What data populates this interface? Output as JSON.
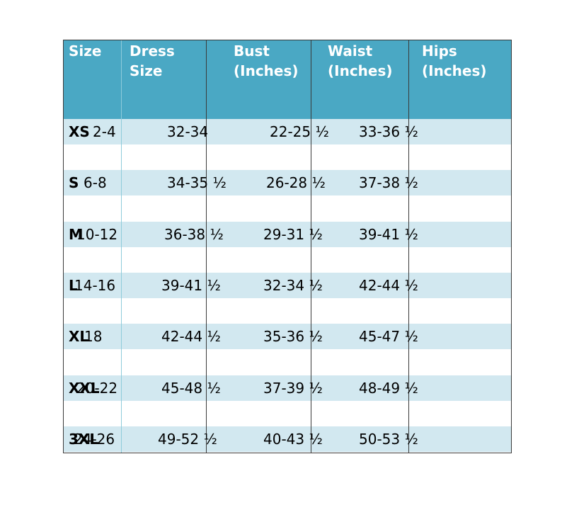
{
  "headers": [
    {
      "id": "size",
      "text": "Size"
    },
    {
      "id": "dress",
      "text": "Dress\nSize"
    },
    {
      "id": "bust",
      "text": "Bust\n(Inches)"
    },
    {
      "id": "waist",
      "text": "Waist\n(Inches)"
    },
    {
      "id": "hips",
      "text": "Hips\n(Inches)"
    }
  ],
  "rows": [
    {
      "size": "XS",
      "dress": "2-4",
      "bust": "32-34",
      "waist": "22-25 ½",
      "hips": "33-36 ½"
    },
    {
      "size": "S",
      "dress": "6-8",
      "bust": "34-35 ½",
      "waist": "26-28 ½",
      "hips": "37-38 ½"
    },
    {
      "size": "M",
      "dress": "10-12",
      "bust": "36-38 ½",
      "waist": "29-31 ½",
      "hips": "39-41 ½"
    },
    {
      "size": "L",
      "dress": "14-16",
      "bust": "39-41 ½",
      "waist": "32-34 ½",
      "hips": "42-44 ½"
    },
    {
      "size": "XL",
      "dress": "18",
      "bust": "42-44 ½",
      "waist": "35-36 ½",
      "hips": "45-47 ½"
    },
    {
      "size": "XXL",
      "dress": "20-22",
      "bust": "45-48 ½",
      "waist": "37-39 ½",
      "hips": "48-49 ½"
    },
    {
      "size": "3XL",
      "dress": "24-26",
      "bust": "49-52 ½",
      "waist": "40-43 ½",
      "hips": "50-53 ½"
    }
  ],
  "colors": {
    "header": "#4aa8c4",
    "band": "#d2e8f0",
    "header_text": "#ffffff",
    "border": "#3a3a3a"
  }
}
